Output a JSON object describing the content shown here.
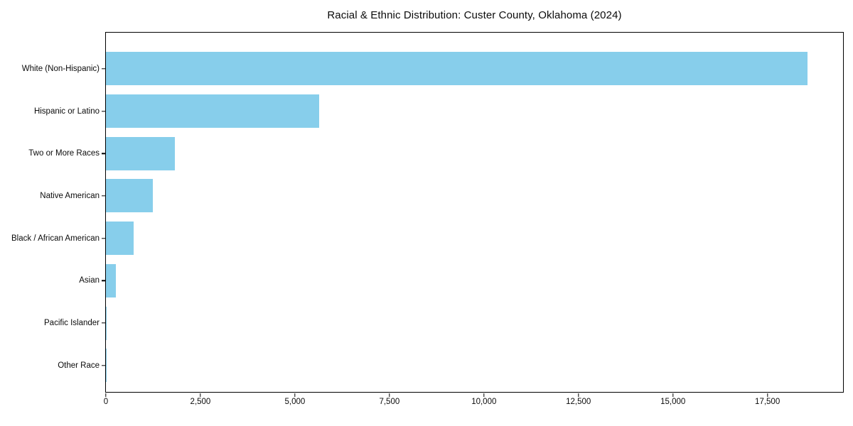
{
  "chart_data": {
    "type": "bar",
    "orientation": "horizontal",
    "title": "Racial & Ethnic Distribution: Custer County, Oklahoma (2024)",
    "xlabel": "",
    "ylabel": "",
    "categories": [
      "White (Non-Hispanic)",
      "Hispanic or Latino",
      "Two or More Races",
      "Native American",
      "Black / African American",
      "Asian",
      "Pacific Islander",
      "Other Race"
    ],
    "values": [
      18560,
      5640,
      1815,
      1235,
      730,
      265,
      25,
      8
    ],
    "xlim": [
      0,
      19500
    ],
    "x_ticks": [
      0,
      2500,
      5000,
      7500,
      10000,
      12500,
      15000,
      17500
    ],
    "x_tick_labels": [
      "0",
      "2,500",
      "5,000",
      "7,500",
      "10,000",
      "12,500",
      "15,000",
      "17,500"
    ],
    "bar_color": "#87CEEB",
    "grid": false,
    "legend": "none",
    "value_labels_shown": false
  }
}
